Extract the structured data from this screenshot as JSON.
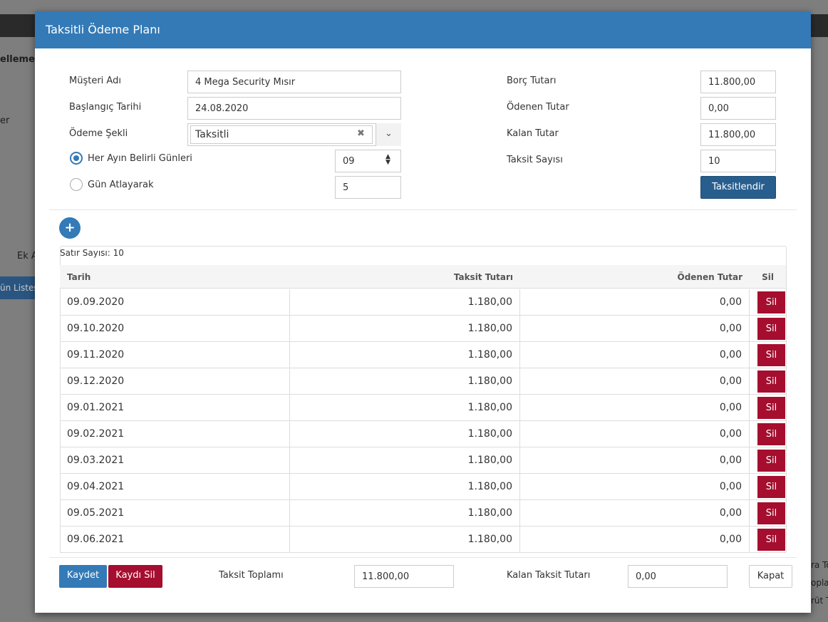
{
  "background": {
    "fragments": [
      "ellemek",
      "er",
      "Ek A",
      "ün Listes",
      "ra To",
      "opla",
      "rüt T"
    ]
  },
  "modal": {
    "title": "Taksitli Ödeme Planı"
  },
  "form": {
    "musteri_adi": {
      "label": "Müşteri Adı",
      "value": "4 Mega Security Mısır"
    },
    "baslangic_tarihi": {
      "label": "Başlangıç Tarihi",
      "value": "24.08.2020"
    },
    "odeme_sekli": {
      "label": "Ödeme Şekli",
      "value": "Taksitli"
    },
    "her_ay": {
      "label": "Her Ayın Belirli Günleri",
      "value": "09",
      "selected": true
    },
    "gun_atlayarak": {
      "label": "Gün Atlayarak",
      "value": "5",
      "selected": false
    },
    "borc_tutari": {
      "label": "Borç Tutarı",
      "value": "11.800,00"
    },
    "odenen_tutar": {
      "label": "Ödenen Tutar",
      "value": "0,00"
    },
    "kalan_tutar": {
      "label": "Kalan Tutar",
      "value": "11.800,00"
    },
    "taksit_sayisi": {
      "label": "Taksit Sayısı",
      "value": "10"
    },
    "taksitlendir_button": "Taksitlendir"
  },
  "table": {
    "row_count": "Satır Sayısı: 10",
    "columns": [
      "Tarih",
      "Taksit Tutarı",
      "Ödenen Tutar",
      "Sil"
    ],
    "rows": [
      [
        "09.09.2020",
        "1.180,00",
        "0,00",
        "Sil"
      ],
      [
        "09.10.2020",
        "1.180,00",
        "0,00",
        "Sil"
      ],
      [
        "09.11.2020",
        "1.180,00",
        "0,00",
        "Sil"
      ],
      [
        "09.12.2020",
        "1.180,00",
        "0,00",
        "Sil"
      ],
      [
        "09.01.2021",
        "1.180,00",
        "0,00",
        "Sil"
      ],
      [
        "09.02.2021",
        "1.180,00",
        "0,00",
        "Sil"
      ],
      [
        "09.03.2021",
        "1.180,00",
        "0,00",
        "Sil"
      ],
      [
        "09.04.2021",
        "1.180,00",
        "0,00",
        "Sil"
      ],
      [
        "09.05.2021",
        "1.180,00",
        "0,00",
        "Sil"
      ],
      [
        "09.06.2021",
        "1.180,00",
        "0,00",
        "Sil"
      ]
    ]
  },
  "footer": {
    "kaydet": "Kaydet",
    "kaydi_sil": "Kaydı Sil",
    "taksit_toplami": {
      "label": "Taksit Toplamı",
      "value": "11.800,00"
    },
    "kalan_taksit_tutari": {
      "label": "Kalan Taksit Tutarı",
      "value": "0,00"
    },
    "kapat": "Kapat"
  }
}
